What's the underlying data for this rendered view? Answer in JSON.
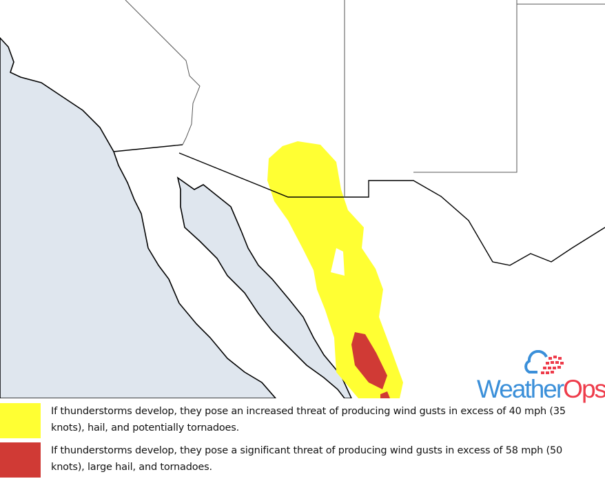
{
  "colors": {
    "ocean": "#dfe6ee",
    "land": "#ffffff",
    "increased_threat": "#ffff33",
    "significant_threat": "#d03a35",
    "logo_blue": "#3a8fd9",
    "logo_red": "#ee3b4a"
  },
  "logo": {
    "part1": "Weather",
    "part2": "Ops",
    "icon": "cloud-grid-icon"
  },
  "legend": [
    {
      "level": "increased",
      "color": "#ffff33",
      "text": "If thunderstorms develop, they pose an increased threat of producing wind gusts in excess of 40 mph (35 knots), hail, and potentially tornadoes."
    },
    {
      "level": "significant",
      "color": "#d03a35",
      "text": "If thunderstorms develop, they pose a significant threat of producing wind gusts in excess of 58 mph (50 knots), large hail, and tornadoes."
    }
  ]
}
